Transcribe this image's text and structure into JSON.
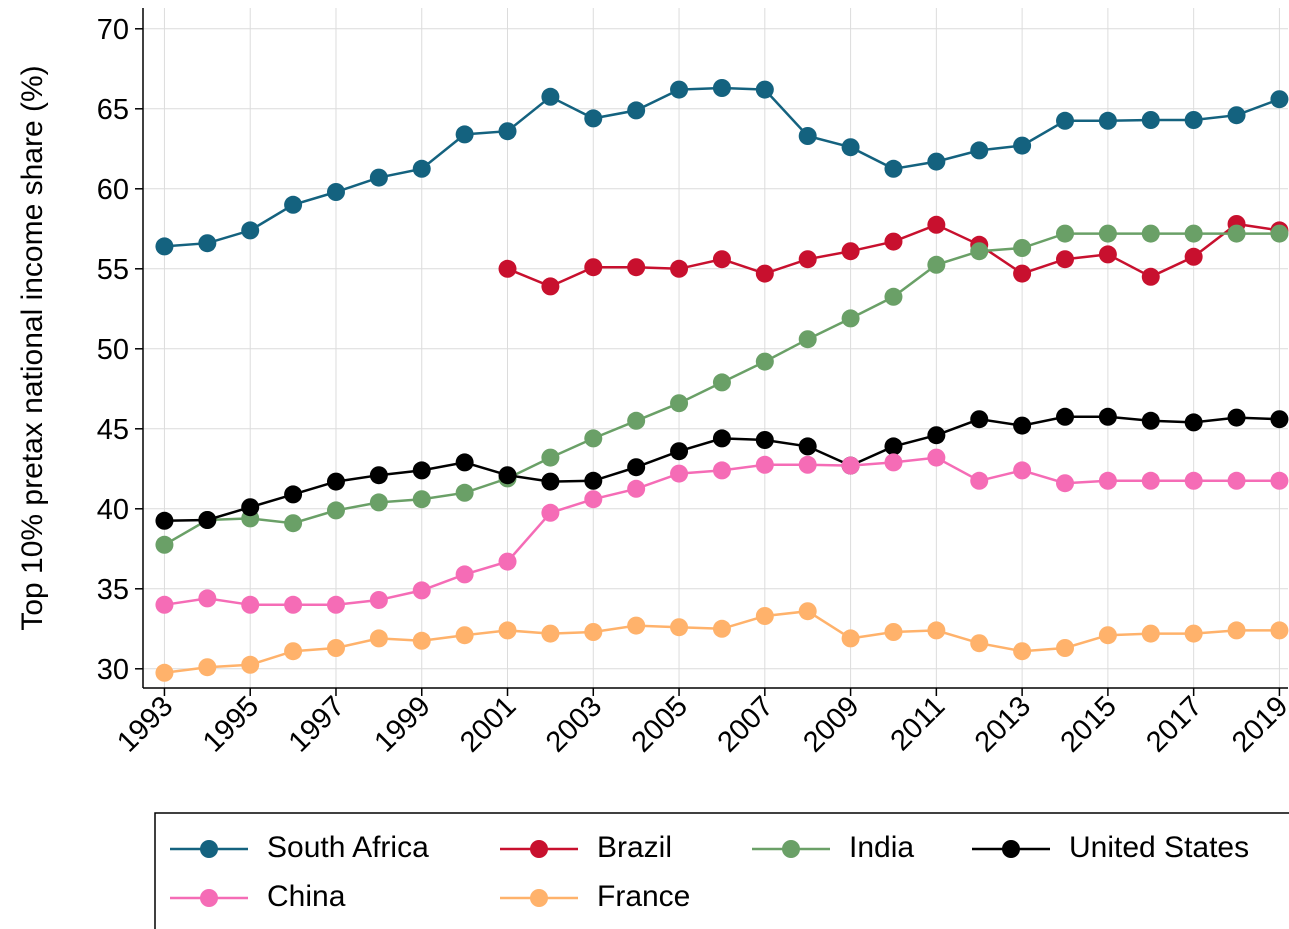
{
  "chart_data": {
    "type": "line",
    "y_label": "Top 10% pretax national income share (%)",
    "x": [
      1993,
      1994,
      1995,
      1996,
      1997,
      1998,
      1999,
      2000,
      2001,
      2002,
      2003,
      2004,
      2005,
      2006,
      2007,
      2008,
      2009,
      2010,
      2011,
      2012,
      2013,
      2014,
      2015,
      2016,
      2017,
      2018,
      2019
    ],
    "xlim": [
      1992.5,
      2019.2
    ],
    "xticks": [
      1993,
      1995,
      1997,
      1999,
      2001,
      2003,
      2005,
      2007,
      2009,
      2011,
      2013,
      2015,
      2017,
      2019
    ],
    "ylim": [
      28.8,
      71.3
    ],
    "yticks": [
      30,
      35,
      40,
      45,
      50,
      55,
      60,
      65,
      70
    ],
    "grid": true,
    "legend_position": "bottom",
    "series": [
      {
        "name": "South Africa",
        "color": "#14627f",
        "values": [
          56.4,
          56.6,
          57.4,
          59.0,
          59.8,
          60.7,
          61.25,
          63.4,
          63.6,
          65.75,
          64.4,
          64.9,
          66.2,
          66.3,
          66.2,
          63.3,
          62.6,
          61.25,
          61.7,
          62.4,
          62.7,
          64.25,
          64.25,
          64.3,
          64.3,
          64.6,
          65.6
        ]
      },
      {
        "name": "Brazil",
        "color": "#c8102e",
        "values": [
          null,
          null,
          null,
          null,
          null,
          null,
          null,
          null,
          55.0,
          53.9,
          55.1,
          55.1,
          55.0,
          55.6,
          54.7,
          55.6,
          56.1,
          56.7,
          57.75,
          56.5,
          54.7,
          55.6,
          55.9,
          54.5,
          55.75,
          57.8,
          57.4
        ]
      },
      {
        "name": "India",
        "color": "#6aa067",
        "values": [
          37.75,
          39.3,
          39.4,
          39.1,
          39.9,
          40.4,
          40.6,
          41.0,
          41.9,
          43.2,
          44.4,
          45.5,
          46.6,
          47.9,
          49.2,
          50.6,
          51.9,
          53.25,
          55.25,
          56.1,
          56.3,
          57.2,
          57.2,
          57.2,
          57.2,
          57.2,
          57.2
        ]
      },
      {
        "name": "United States",
        "color": "#000000",
        "values": [
          39.25,
          39.3,
          40.1,
          40.9,
          41.7,
          42.1,
          42.4,
          42.9,
          42.1,
          41.7,
          41.75,
          42.6,
          43.6,
          44.4,
          44.3,
          43.9,
          42.7,
          43.9,
          44.6,
          45.6,
          45.2,
          45.75,
          45.75,
          45.5,
          45.4,
          45.7,
          45.6
        ]
      },
      {
        "name": "China",
        "color": "#f56cb6",
        "values": [
          34.0,
          34.4,
          34.0,
          34.0,
          34.0,
          34.3,
          34.9,
          35.9,
          36.7,
          39.75,
          40.6,
          41.25,
          42.2,
          42.4,
          42.75,
          42.75,
          42.7,
          42.9,
          43.2,
          41.75,
          42.4,
          41.6,
          41.75,
          41.75,
          41.75,
          41.75,
          41.75
        ]
      },
      {
        "name": "France",
        "color": "#ffb26b",
        "values": [
          29.75,
          30.1,
          30.25,
          31.1,
          31.3,
          31.9,
          31.75,
          32.1,
          32.4,
          32.2,
          32.3,
          32.7,
          32.6,
          32.5,
          33.3,
          33.6,
          31.9,
          32.3,
          32.4,
          31.6,
          31.1,
          31.3,
          32.1,
          32.2,
          32.2,
          32.4,
          32.4
        ]
      }
    ]
  }
}
